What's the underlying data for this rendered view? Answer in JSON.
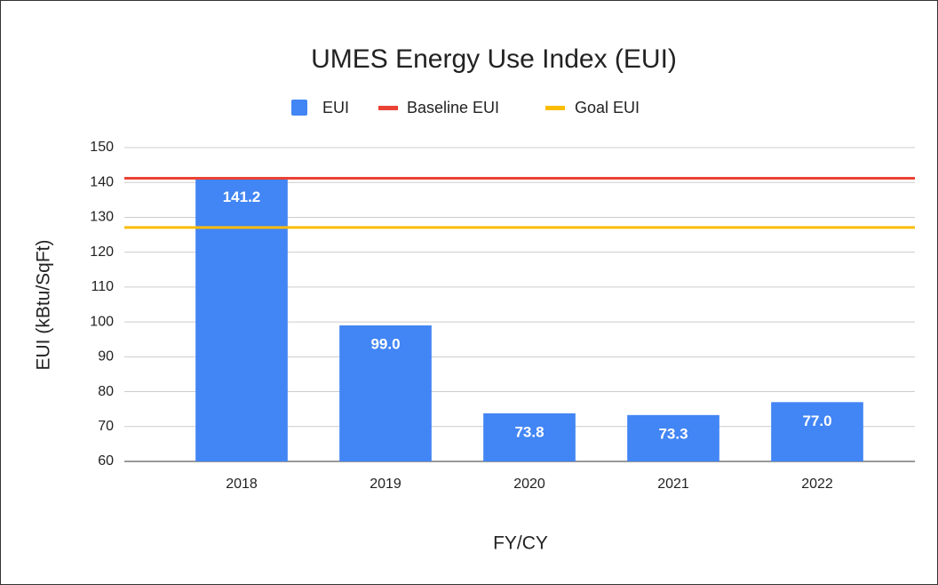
{
  "chart_data": {
    "type": "bar",
    "title": "UMES Energy Use Index (EUI)",
    "x_label": "FY/CY",
    "y_label": "EUI (kBtu/SqFt)",
    "categories": [
      "2018",
      "2019",
      "2020",
      "2021",
      "2022"
    ],
    "series": [
      {
        "name": "EUI",
        "type": "bar",
        "color": "#4285f4",
        "values": [
          141.2,
          99,
          73.8,
          73.3,
          77
        ],
        "value_labels": [
          "141.2",
          "99.0",
          "73.8",
          "73.3",
          "77.0"
        ]
      },
      {
        "name": "Baseline EUI",
        "type": "line",
        "color": "#ea4335",
        "values": [
          141.2,
          141.2,
          141.2,
          141.2,
          141.2
        ]
      },
      {
        "name": "Goal EUI",
        "type": "line",
        "color": "#fbbc04",
        "values": [
          127.1,
          127.1,
          127.1,
          127.1,
          127.1
        ]
      }
    ],
    "ylim": [
      60,
      150
    ],
    "yticks": [
      60,
      70,
      80,
      90,
      100,
      110,
      120,
      130,
      140,
      150
    ],
    "grid": true,
    "legend": "top"
  }
}
